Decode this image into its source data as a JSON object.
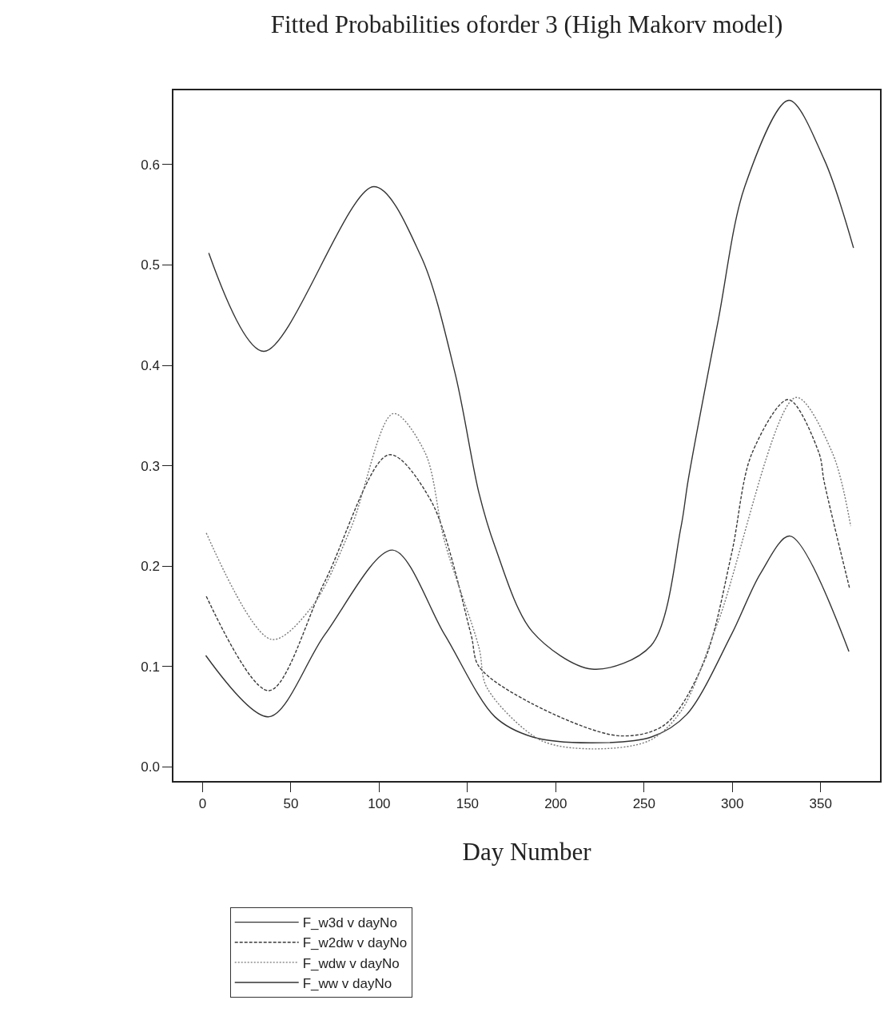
{
  "chart_data": {
    "type": "line",
    "title": "Fitted Probabilities oforder 3 (High Makorv model)",
    "xlabel": "Day Number",
    "xlim": [
      -16.5,
      383.6
    ],
    "xticks": [
      0,
      50,
      100,
      150,
      200,
      250,
      300,
      350
    ],
    "ylim": [
      -0.014,
      0.674
    ],
    "yticks": [
      {
        "value": 0,
        "label": "0.0"
      },
      {
        "value": 0.1,
        "label": "0.1"
      },
      {
        "value": 0.2,
        "label": "0.2"
      },
      {
        "value": 0.3,
        "label": "0.3"
      },
      {
        "value": 0.4,
        "label": "0.4"
      },
      {
        "value": 0.5,
        "label": "0.5"
      },
      {
        "value": 0.6,
        "label": "0.6"
      }
    ],
    "grid": false,
    "legend": "bottom left",
    "marker": "none",
    "series": [
      {
        "name": "F_w3d v dayNo",
        "color": "#333333",
        "line_style": "solid",
        "x": [
          1.8,
          37.6,
          69.3,
          107.6,
          137,
          165.5,
          186.6,
          219.7,
          254.4,
          274,
          299.5,
          316,
          332.6,
          366
        ],
        "values": [
          0.111,
          0.05,
          0.132,
          0.216,
          0.132,
          0.05,
          0.03,
          0.024,
          0.03,
          0.052,
          0.132,
          0.193,
          0.23,
          0.115
        ]
      },
      {
        "name": "F_w2dw v dayNo",
        "color": "#3a3a3a",
        "line_style": "dashed",
        "x": [
          2.1,
          37.6,
          69.3,
          105.6,
          129.4,
          152,
          156.5,
          186.6,
          236,
          261.7,
          284,
          299.5,
          311,
          331.7,
          349,
          352,
          366.5
        ],
        "values": [
          0.17,
          0.076,
          0.185,
          0.311,
          0.265,
          0.132,
          0.1,
          0.063,
          0.031,
          0.042,
          0.105,
          0.212,
          0.312,
          0.366,
          0.313,
          0.284,
          0.177
        ]
      },
      {
        "name": "F_wdw v dayNo",
        "color": "#777777",
        "line_style": "dotted",
        "x": [
          2.1,
          39,
          61.7,
          84,
          108,
          126,
          137,
          156.5,
          161,
          191,
          219.7,
          252.7,
          270.7,
          292,
          336,
          356.6,
          367
        ],
        "values": [
          0.233,
          0.127,
          0.159,
          0.238,
          0.352,
          0.313,
          0.225,
          0.119,
          0.079,
          0.027,
          0.018,
          0.026,
          0.055,
          0.145,
          0.368,
          0.313,
          0.24
        ]
      },
      {
        "name": "F_ww v dayNo",
        "color": "#333333",
        "line_style": "solid",
        "x": [
          3.5,
          34.6,
          97,
          123.6,
          143,
          156.5,
          165.5,
          186.6,
          220.5,
          254,
          270.8,
          275,
          292,
          307,
          332,
          352,
          368.6
        ],
        "values": [
          0.512,
          0.414,
          0.578,
          0.509,
          0.392,
          0.273,
          0.22,
          0.135,
          0.0975,
          0.121,
          0.238,
          0.286,
          0.445,
          0.578,
          0.664,
          0.605,
          0.517
        ]
      }
    ]
  }
}
